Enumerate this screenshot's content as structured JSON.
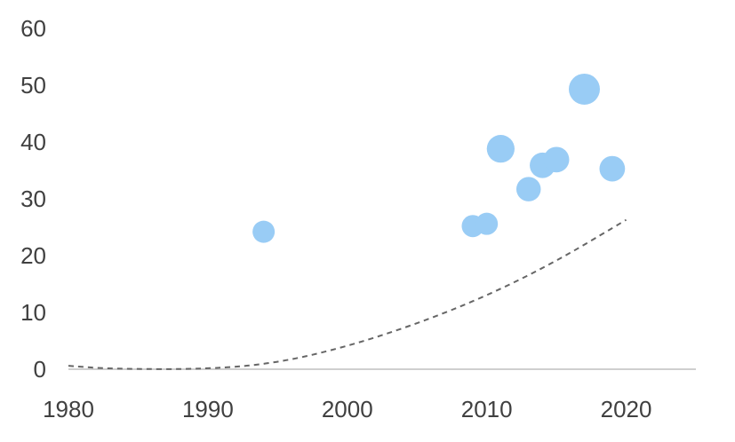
{
  "chart_data": {
    "type": "scatter",
    "title": "",
    "xlabel": "",
    "ylabel": "",
    "xlim": [
      1980,
      2025
    ],
    "ylim": [
      0,
      60
    ],
    "x_ticks": [
      "1980",
      "1990",
      "2000",
      "2010",
      "2020"
    ],
    "y_ticks": [
      "0",
      "10",
      "20",
      "30",
      "40",
      "50",
      "60"
    ],
    "grid": false,
    "legend": "none",
    "colors": {
      "points": "#99ccf5",
      "trend": "#666666",
      "axis": "#bfbfbf",
      "text": "#404040"
    },
    "series": [
      {
        "kind": "bubble",
        "points": [
          {
            "x": 1994,
            "y": 24.2,
            "size": 1.0
          },
          {
            "x": 2009,
            "y": 25.2,
            "size": 1.0
          },
          {
            "x": 2010,
            "y": 25.6,
            "size": 1.0
          },
          {
            "x": 2011,
            "y": 38.8,
            "size": 1.25
          },
          {
            "x": 2013,
            "y": 31.7,
            "size": 1.1
          },
          {
            "x": 2014,
            "y": 35.9,
            "size": 1.15
          },
          {
            "x": 2015,
            "y": 36.9,
            "size": 1.15
          },
          {
            "x": 2017,
            "y": 49.3,
            "size": 1.4
          },
          {
            "x": 2019,
            "y": 35.3,
            "size": 1.15
          }
        ]
      },
      {
        "kind": "trendline",
        "style": "dashed",
        "points": [
          {
            "x": 1980,
            "y": 0.6
          },
          {
            "x": 1983,
            "y": 0.05
          },
          {
            "x": 1990,
            "y": 0.0
          },
          {
            "x": 1995,
            "y": 1.1
          },
          {
            "x": 2000,
            "y": 4.0
          },
          {
            "x": 2005,
            "y": 8.0
          },
          {
            "x": 2010,
            "y": 12.9
          },
          {
            "x": 2015,
            "y": 19.0
          },
          {
            "x": 2020,
            "y": 26.3
          }
        ]
      }
    ]
  }
}
